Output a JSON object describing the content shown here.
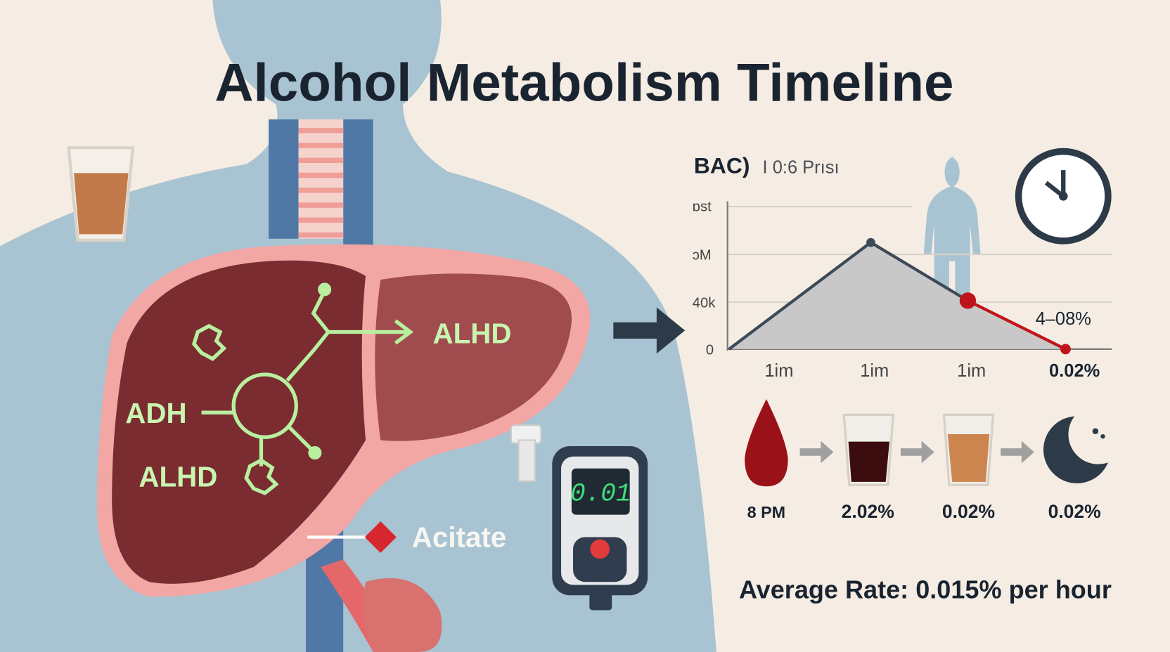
{
  "title": "Alcohol Metabolism Timeline",
  "chart": {
    "heading": "BAC)",
    "subheading": "I 0:6 Prısı",
    "y_labels": [
      "ɒst",
      "ɔM",
      "40k",
      "0"
    ],
    "x_labels": [
      "1im",
      "1im",
      "1im",
      "0.02%"
    ],
    "annotation": "4–08%"
  },
  "liver": {
    "labels": [
      "ALHD",
      "ADH",
      "ALHD"
    ],
    "product": "Acitate"
  },
  "device": {
    "reading": "0.01"
  },
  "timeline": {
    "steps": [
      "8 PM",
      "2.02%",
      "0.02%",
      "0.02%"
    ]
  },
  "footer": "Average Rate: 0.015% per hour"
}
